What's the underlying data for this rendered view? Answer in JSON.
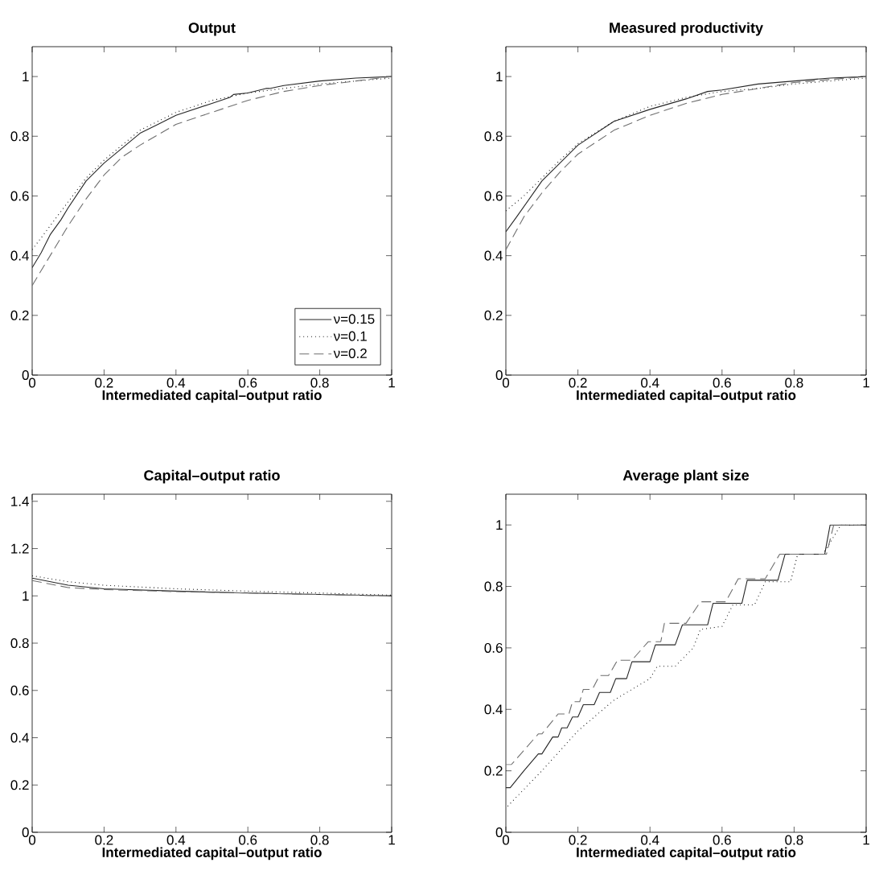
{
  "chart_data": [
    {
      "type": "line",
      "title": "Output",
      "xlabel": "Intermediated capital–output ratio",
      "xlim": [
        0,
        1
      ],
      "ylim": [
        0,
        1.1
      ],
      "xticks": [
        0,
        0.2,
        0.4,
        0.6,
        0.8,
        1
      ],
      "yticks": [
        0,
        0.2,
        0.4,
        0.6,
        0.8,
        1
      ],
      "legend": "bottom right",
      "series": [
        {
          "name": "ν=0.15",
          "color": "#262626",
          "line_style": "solid",
          "x": [
            0,
            0.025,
            0.05,
            0.08,
            0.1,
            0.15,
            0.2,
            0.25,
            0.3,
            0.35,
            0.4,
            0.45,
            0.5,
            0.55,
            0.56,
            0.6,
            0.65,
            0.66,
            0.7,
            0.8,
            0.9,
            1
          ],
          "values": [
            0.36,
            0.41,
            0.47,
            0.52,
            0.56,
            0.65,
            0.71,
            0.76,
            0.81,
            0.84,
            0.87,
            0.89,
            0.91,
            0.93,
            0.94,
            0.945,
            0.96,
            0.96,
            0.97,
            0.985,
            0.995,
            1
          ]
        },
        {
          "name": "ν=0.1",
          "color": "#000000",
          "line_style": "dotted",
          "x": [
            0,
            0.05,
            0.1,
            0.15,
            0.2,
            0.25,
            0.3,
            0.4,
            0.5,
            0.6,
            0.7,
            0.8,
            0.9,
            1
          ],
          "values": [
            0.42,
            0.5,
            0.58,
            0.66,
            0.72,
            0.77,
            0.82,
            0.88,
            0.92,
            0.945,
            0.96,
            0.975,
            0.985,
            0.995
          ]
        },
        {
          "name": "ν=0.2",
          "color": "#6e6e6e",
          "line_style": "dashed",
          "x": [
            0,
            0.05,
            0.1,
            0.15,
            0.2,
            0.25,
            0.3,
            0.4,
            0.5,
            0.6,
            0.7,
            0.8,
            0.9,
            1
          ],
          "values": [
            0.3,
            0.4,
            0.5,
            0.59,
            0.67,
            0.73,
            0.77,
            0.84,
            0.88,
            0.92,
            0.95,
            0.97,
            0.985,
            1
          ]
        }
      ]
    },
    {
      "type": "line",
      "title": "Measured productivity",
      "xlabel": "Intermediated capital–output ratio",
      "xlim": [
        0,
        1
      ],
      "ylim": [
        0,
        1.1
      ],
      "xticks": [
        0,
        0.2,
        0.4,
        0.6,
        0.8,
        1
      ],
      "yticks": [
        0,
        0.2,
        0.4,
        0.6,
        0.8,
        1
      ],
      "series": [
        {
          "color": "#262626",
          "line_style": "solid",
          "x": [
            0,
            0.03,
            0.1,
            0.15,
            0.2,
            0.25,
            0.3,
            0.4,
            0.5,
            0.56,
            0.6,
            0.65,
            0.7,
            0.8,
            0.9,
            1
          ],
          "values": [
            0.48,
            0.53,
            0.65,
            0.71,
            0.77,
            0.81,
            0.85,
            0.89,
            0.925,
            0.95,
            0.955,
            0.965,
            0.975,
            0.985,
            0.995,
            1
          ]
        },
        {
          "color": "#000000",
          "line_style": "dotted",
          "x": [
            0,
            0.05,
            0.1,
            0.15,
            0.2,
            0.3,
            0.4,
            0.5,
            0.6,
            0.7,
            0.8,
            0.9,
            1
          ],
          "values": [
            0.55,
            0.6,
            0.66,
            0.72,
            0.775,
            0.85,
            0.9,
            0.93,
            0.95,
            0.96,
            0.975,
            0.985,
            0.995
          ]
        },
        {
          "color": "#6e6e6e",
          "line_style": "dashed",
          "x": [
            0,
            0.05,
            0.1,
            0.15,
            0.2,
            0.3,
            0.4,
            0.5,
            0.6,
            0.7,
            0.8,
            0.9,
            1
          ],
          "values": [
            0.42,
            0.53,
            0.61,
            0.68,
            0.74,
            0.82,
            0.87,
            0.91,
            0.94,
            0.96,
            0.98,
            0.99,
            1
          ]
        }
      ]
    },
    {
      "type": "line",
      "title": "Capital–output ratio",
      "xlabel": "Intermediated capital–output ratio",
      "xlim": [
        0,
        1
      ],
      "ylim": [
        0,
        1.43
      ],
      "xticks": [
        0,
        0.2,
        0.4,
        0.6,
        0.8,
        1
      ],
      "yticks": [
        0,
        0.2,
        0.4,
        0.6,
        0.8,
        1,
        1.2,
        1.4
      ],
      "series": [
        {
          "color": "#262626",
          "line_style": "solid",
          "x": [
            0,
            0.1,
            0.2,
            0.4,
            0.6,
            0.8,
            1
          ],
          "values": [
            1.075,
            1.045,
            1.03,
            1.02,
            1.012,
            1.006,
            1.0
          ]
        },
        {
          "color": "#000000",
          "line_style": "dotted",
          "x": [
            0,
            0.1,
            0.2,
            0.4,
            0.6,
            0.8,
            1
          ],
          "values": [
            1.085,
            1.06,
            1.045,
            1.03,
            1.02,
            1.012,
            1.003
          ]
        },
        {
          "color": "#6e6e6e",
          "line_style": "dashed",
          "x": [
            0,
            0.1,
            0.2,
            0.4,
            0.6,
            0.8,
            1
          ],
          "values": [
            1.065,
            1.035,
            1.027,
            1.018,
            1.012,
            1.006,
            1.0
          ]
        }
      ]
    },
    {
      "type": "line",
      "title": "Average plant size",
      "xlabel": "Intermediated capital–output ratio",
      "xlim": [
        0,
        1
      ],
      "ylim": [
        0,
        1.1
      ],
      "xticks": [
        0,
        0.2,
        0.4,
        0.6,
        0.8,
        1
      ],
      "yticks": [
        0,
        0.2,
        0.4,
        0.6,
        0.8,
        1
      ],
      "series": [
        {
          "color": "#262626",
          "line_style": "solid",
          "x": [
            0,
            0.012,
            0.05,
            0.09,
            0.1,
            0.13,
            0.145,
            0.155,
            0.17,
            0.185,
            0.2,
            0.215,
            0.245,
            0.26,
            0.29,
            0.305,
            0.335,
            0.35,
            0.4,
            0.415,
            0.47,
            0.49,
            0.56,
            0.575,
            0.655,
            0.67,
            0.755,
            0.775,
            0.885,
            0.9,
            1
          ],
          "values": [
            0.145,
            0.145,
            0.2,
            0.255,
            0.255,
            0.31,
            0.31,
            0.34,
            0.34,
            0.375,
            0.375,
            0.415,
            0.415,
            0.455,
            0.455,
            0.5,
            0.5,
            0.555,
            0.555,
            0.61,
            0.61,
            0.675,
            0.675,
            0.745,
            0.745,
            0.82,
            0.82,
            0.905,
            0.905,
            1.0,
            1.0
          ]
        },
        {
          "color": "#000000",
          "line_style": "dotted",
          "x": [
            0.005,
            0.1,
            0.2,
            0.3,
            0.4,
            0.42,
            0.47,
            0.52,
            0.54,
            0.6,
            0.63,
            0.69,
            0.72,
            0.79,
            0.81,
            0.88,
            0.93,
            1
          ],
          "values": [
            0.085,
            0.2,
            0.33,
            0.43,
            0.5,
            0.54,
            0.54,
            0.6,
            0.66,
            0.67,
            0.74,
            0.74,
            0.815,
            0.815,
            0.905,
            0.905,
            1.0,
            1.0
          ]
        },
        {
          "color": "#6e6e6e",
          "line_style": "dashed",
          "x": [
            0,
            0.015,
            0.09,
            0.1,
            0.145,
            0.175,
            0.185,
            0.205,
            0.215,
            0.24,
            0.26,
            0.285,
            0.31,
            0.35,
            0.395,
            0.43,
            0.44,
            0.5,
            0.54,
            0.61,
            0.645,
            0.72,
            0.76,
            0.89,
            0.91,
            1
          ],
          "values": [
            0.22,
            0.22,
            0.32,
            0.32,
            0.385,
            0.385,
            0.425,
            0.425,
            0.465,
            0.465,
            0.51,
            0.51,
            0.56,
            0.56,
            0.62,
            0.62,
            0.68,
            0.68,
            0.75,
            0.75,
            0.825,
            0.825,
            0.905,
            0.905,
            1.0,
            1.0
          ]
        }
      ]
    }
  ]
}
